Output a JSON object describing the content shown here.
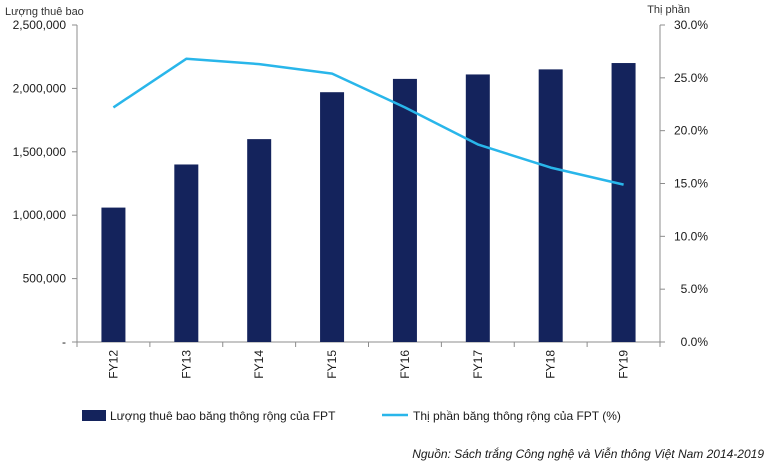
{
  "chart_data": {
    "type": "bar+line",
    "categories": [
      "FY12",
      "FY13",
      "FY14",
      "FY15",
      "FY16",
      "FY17",
      "FY18",
      "FY19"
    ],
    "series": [
      {
        "name": "Lượng thuê bao băng thông rộng của FPT",
        "type": "bar",
        "axis": "left",
        "color": "#14235c",
        "values": [
          1060000,
          1400000,
          1600000,
          1970000,
          2075000,
          2110000,
          2150000,
          2200000
        ]
      },
      {
        "name": "Thị phần băng thông rộng của FPT (%)",
        "type": "line",
        "axis": "right",
        "color": "#29b6ea",
        "values": [
          22.2,
          26.8,
          26.3,
          25.4,
          22.2,
          18.7,
          16.5,
          14.9
        ]
      }
    ],
    "y_left": {
      "label": "Lượng thuê bao",
      "ylim": [
        0,
        2500000
      ],
      "ticks": [
        0,
        500000,
        1000000,
        1500000,
        2000000,
        2500000
      ],
      "tick_labels": [
        "-",
        "500,000",
        "1,000,000",
        "1,500,000",
        "2,000,000",
        "2,500,000"
      ]
    },
    "y_right": {
      "label": "Thị phần",
      "ylim": [
        0,
        30
      ],
      "ticks": [
        0,
        5,
        10,
        15,
        20,
        25,
        30
      ],
      "tick_labels": [
        "0.0%",
        "5.0%",
        "10.0%",
        "15.0%",
        "20.0%",
        "25.0%",
        "30.0%"
      ]
    },
    "grid": false,
    "legend": "bottom"
  },
  "source": "Nguồn: Sách trắng Công nghệ và Viễn thông Việt Nam 2014-2019"
}
